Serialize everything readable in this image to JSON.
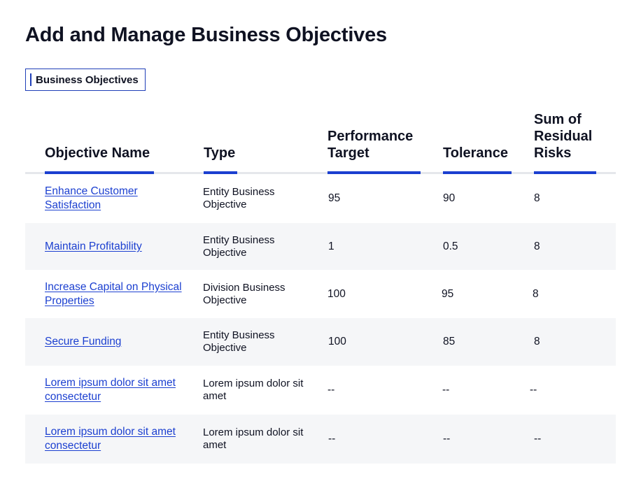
{
  "page": {
    "title": "Add and Manage Business Objectives"
  },
  "tabs": [
    {
      "label": "Business Objectives",
      "active": true
    }
  ],
  "table": {
    "headers": {
      "name": "Objective Name",
      "type": "Type",
      "performance": "Performance Target",
      "tolerance": "Tolerance",
      "risks": "Sum of Residual Risks"
    },
    "rows": [
      {
        "name": "Enhance Customer Satisfaction",
        "type": "Entity Business Objective",
        "performance": "95",
        "tolerance": "90",
        "risks": "8"
      },
      {
        "name": "Maintain Profitability",
        "type": "Entity Business Objective",
        "performance": "1",
        "tolerance": "0.5",
        "risks": "8"
      },
      {
        "name": "Increase Capital on Physical Properties",
        "type": "Division Business Objective",
        "performance": "100",
        "tolerance": "95",
        "risks": "8"
      },
      {
        "name": "Secure Funding",
        "type": "Entity Business Objective",
        "performance": "100",
        "tolerance": "85",
        "risks": "8"
      },
      {
        "name": "Lorem ipsum dolor sit amet consectetur",
        "type": "Lorem ipsum dolor sit amet",
        "performance": "--",
        "tolerance": "--",
        "risks": "--"
      },
      {
        "name": "Lorem ipsum dolor sit amet consectetur",
        "type": "Lorem ipsum dolor sit amet",
        "performance": "--",
        "tolerance": "--",
        "risks": "--"
      }
    ]
  },
  "colors": {
    "accent": "#1b3fd0",
    "text": "#0f1222",
    "row_alt": "#f5f6f8",
    "header_rule": "#e5e7eb"
  }
}
